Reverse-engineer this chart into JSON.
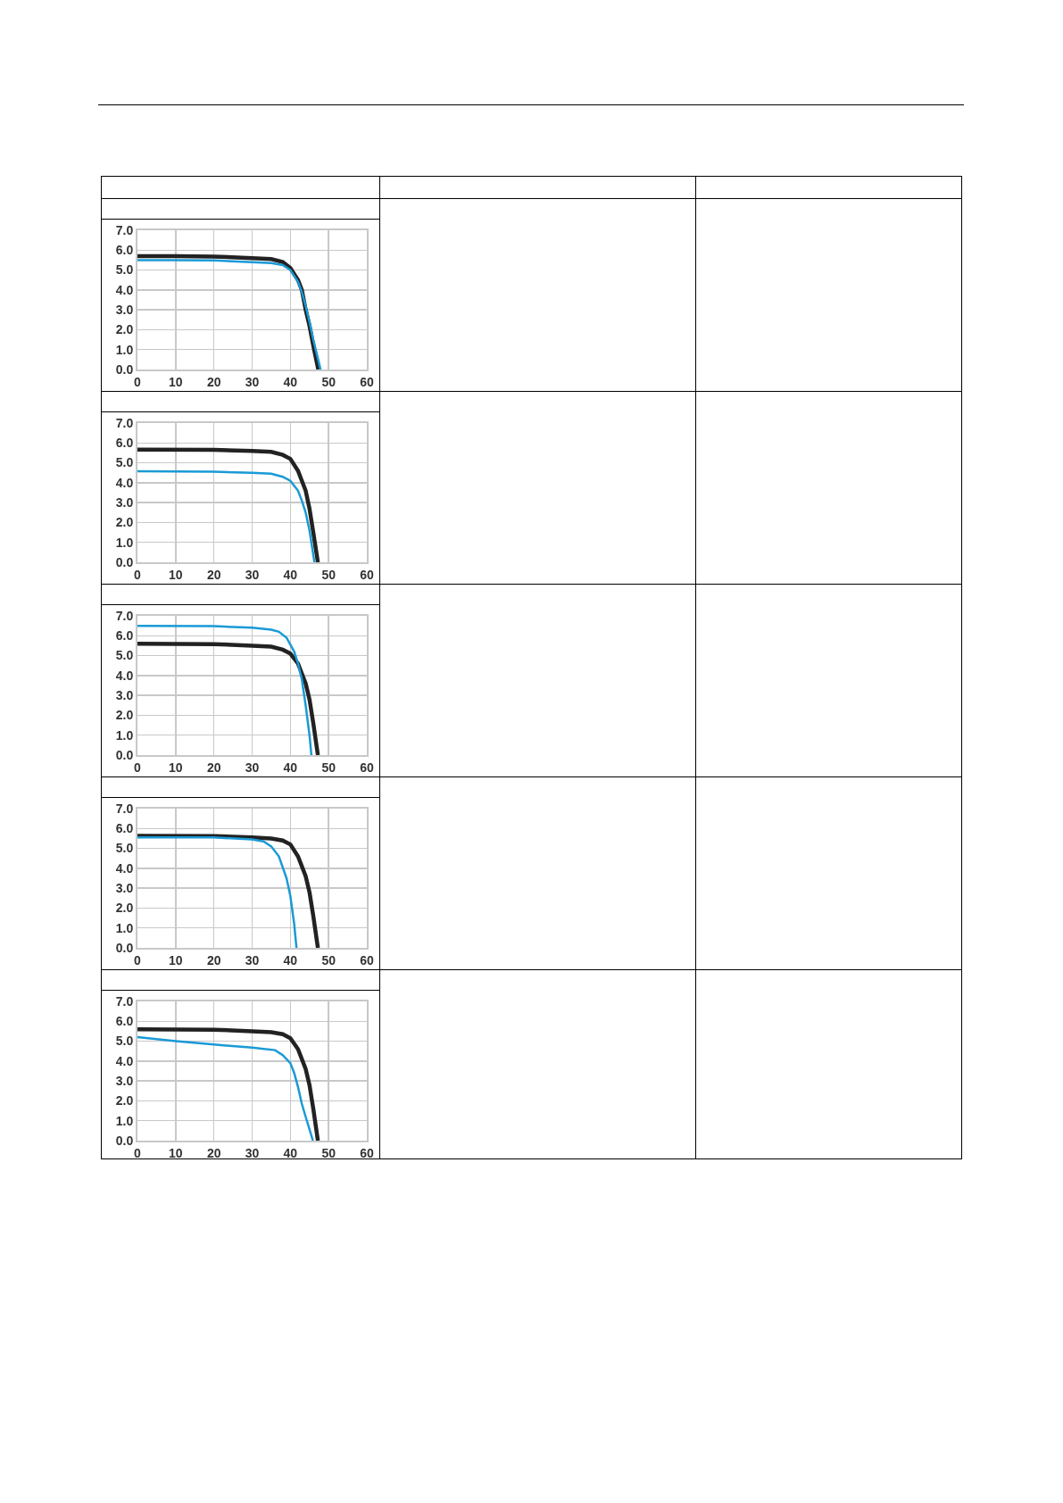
{
  "chart_data": [
    {
      "type": "line",
      "xlim": [
        0,
        60
      ],
      "ylim": [
        0,
        7
      ],
      "xticks": [
        0,
        10,
        20,
        30,
        40,
        50,
        60
      ],
      "yticks": [
        {
          "value": 0,
          "label": "0.0"
        },
        {
          "value": 1,
          "label": "1.0"
        },
        {
          "value": 2,
          "label": "2.0"
        },
        {
          "value": 3,
          "label": "3.0"
        },
        {
          "value": 4,
          "label": "4.0"
        },
        {
          "value": 5,
          "label": "5.0"
        },
        {
          "value": 6,
          "label": "6.0"
        },
        {
          "value": 7,
          "label": "7.0"
        }
      ],
      "grid": true,
      "series": [
        {
          "color": "#222222",
          "x": [
            0,
            10,
            20,
            30,
            35,
            38,
            40,
            42,
            43,
            44,
            45,
            46,
            47.3
          ],
          "values": [
            5.7,
            5.7,
            5.68,
            5.6,
            5.55,
            5.4,
            5.1,
            4.5,
            4.0,
            3.0,
            2.2,
            1.2,
            0
          ]
        },
        {
          "color": "#1a9ad6",
          "x": [
            0,
            10,
            20,
            30,
            35,
            38,
            40,
            42,
            43,
            44,
            45,
            46,
            47.9
          ],
          "values": [
            5.5,
            5.5,
            5.48,
            5.4,
            5.35,
            5.25,
            5.0,
            4.4,
            3.9,
            3.2,
            2.4,
            1.5,
            0
          ]
        }
      ]
    },
    {
      "type": "line",
      "xlim": [
        0,
        60
      ],
      "ylim": [
        0,
        7
      ],
      "xticks": [
        0,
        10,
        20,
        30,
        40,
        50,
        60
      ],
      "yticks": [
        {
          "value": 0,
          "label": "0.0"
        },
        {
          "value": 1,
          "label": "1.0"
        },
        {
          "value": 2,
          "label": "2.0"
        },
        {
          "value": 3,
          "label": "3.0"
        },
        {
          "value": 4,
          "label": "4.0"
        },
        {
          "value": 5,
          "label": "5.0"
        },
        {
          "value": 6,
          "label": "6.0"
        },
        {
          "value": 7,
          "label": "7.0"
        }
      ],
      "grid": true,
      "series": [
        {
          "color": "#222222",
          "x": [
            0,
            20,
            30,
            35,
            38,
            40,
            42,
            44,
            45,
            46,
            47.2
          ],
          "values": [
            5.67,
            5.65,
            5.6,
            5.55,
            5.4,
            5.2,
            4.6,
            3.6,
            2.7,
            1.5,
            0
          ]
        },
        {
          "color": "#1a9ad6",
          "x": [
            0,
            20,
            30,
            35,
            38,
            40,
            42,
            43,
            44,
            45,
            46.3
          ],
          "values": [
            4.58,
            4.55,
            4.5,
            4.45,
            4.3,
            4.1,
            3.6,
            3.1,
            2.5,
            1.6,
            0
          ]
        }
      ]
    },
    {
      "type": "line",
      "xlim": [
        0,
        60
      ],
      "ylim": [
        0,
        7
      ],
      "xticks": [
        0,
        10,
        20,
        30,
        40,
        50,
        60
      ],
      "yticks": [
        {
          "value": 0,
          "label": "0.0"
        },
        {
          "value": 1,
          "label": "1.0"
        },
        {
          "value": 2,
          "label": "2.0"
        },
        {
          "value": 3,
          "label": "3.0"
        },
        {
          "value": 4,
          "label": "4.0"
        },
        {
          "value": 5,
          "label": "5.0"
        },
        {
          "value": 6,
          "label": "6.0"
        },
        {
          "value": 7,
          "label": "7.0"
        }
      ],
      "grid": true,
      "series": [
        {
          "color": "#222222",
          "x": [
            0,
            20,
            30,
            35,
            38,
            40,
            42,
            44,
            45,
            46,
            47.2
          ],
          "values": [
            5.6,
            5.58,
            5.5,
            5.45,
            5.3,
            5.1,
            4.6,
            3.6,
            2.8,
            1.6,
            0
          ]
        },
        {
          "color": "#1a9ad6",
          "x": [
            0,
            20,
            30,
            35,
            37,
            39,
            41,
            42,
            43,
            44,
            45,
            45.5
          ],
          "values": [
            6.5,
            6.48,
            6.4,
            6.3,
            6.2,
            5.9,
            5.2,
            4.6,
            3.8,
            2.5,
            1.0,
            0
          ]
        }
      ]
    },
    {
      "type": "line",
      "xlim": [
        0,
        60
      ],
      "ylim": [
        0,
        7
      ],
      "xticks": [
        0,
        10,
        20,
        30,
        40,
        50,
        60
      ],
      "yticks": [
        {
          "value": 0,
          "label": "0.0"
        },
        {
          "value": 1,
          "label": "1.0"
        },
        {
          "value": 2,
          "label": "2.0"
        },
        {
          "value": 3,
          "label": "3.0"
        },
        {
          "value": 4,
          "label": "4.0"
        },
        {
          "value": 5,
          "label": "5.0"
        },
        {
          "value": 6,
          "label": "6.0"
        },
        {
          "value": 7,
          "label": "7.0"
        }
      ],
      "grid": true,
      "series": [
        {
          "color": "#222222",
          "x": [
            0,
            20,
            30,
            35,
            38,
            40,
            42,
            44,
            45,
            46,
            47.2
          ],
          "values": [
            5.63,
            5.62,
            5.55,
            5.5,
            5.4,
            5.2,
            4.6,
            3.6,
            2.8,
            1.6,
            0
          ]
        },
        {
          "color": "#1a9ad6",
          "x": [
            0,
            20,
            30,
            33,
            35,
            37,
            39,
            40,
            41,
            41.6
          ],
          "values": [
            5.55,
            5.55,
            5.45,
            5.35,
            5.1,
            4.6,
            3.5,
            2.6,
            1.2,
            0
          ]
        }
      ]
    },
    {
      "type": "line",
      "xlim": [
        0,
        60
      ],
      "ylim": [
        0,
        7
      ],
      "xticks": [
        0,
        10,
        20,
        30,
        40,
        50,
        60
      ],
      "yticks": [
        {
          "value": 0,
          "label": "0.0"
        },
        {
          "value": 1,
          "label": "1.0"
        },
        {
          "value": 2,
          "label": "2.0"
        },
        {
          "value": 3,
          "label": "3.0"
        },
        {
          "value": 4,
          "label": "4.0"
        },
        {
          "value": 5,
          "label": "5.0"
        },
        {
          "value": 6,
          "label": "6.0"
        },
        {
          "value": 7,
          "label": "7.0"
        }
      ],
      "grid": true,
      "series": [
        {
          "color": "#222222",
          "x": [
            0,
            20,
            30,
            35,
            38,
            40,
            42,
            44,
            45,
            46,
            47.2
          ],
          "values": [
            5.6,
            5.58,
            5.5,
            5.45,
            5.35,
            5.15,
            4.6,
            3.6,
            2.8,
            1.6,
            0
          ]
        },
        {
          "color": "#1a9ad6",
          "x": [
            0,
            10,
            20,
            30,
            36,
            38,
            40,
            41,
            42,
            43,
            44,
            45.9
          ],
          "values": [
            5.2,
            5.0,
            4.83,
            4.68,
            4.55,
            4.3,
            3.9,
            3.4,
            2.7,
            1.85,
            1.2,
            0
          ]
        }
      ]
    }
  ]
}
